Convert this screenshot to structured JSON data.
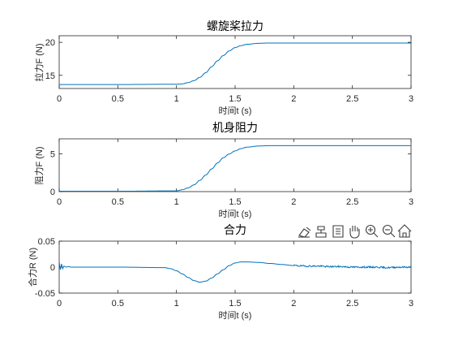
{
  "colors": {
    "line": "#0072BD",
    "axis": "#262626",
    "background": "#ffffff",
    "toolbar": "#3c3c3c"
  },
  "toolbar": {
    "icons": [
      "brush-icon",
      "data-tip-icon",
      "legend-icon",
      "pan-icon",
      "zoom-in-icon",
      "zoom-out-icon",
      "home-icon"
    ]
  },
  "chart_data": [
    {
      "type": "line",
      "title": "螺旋桨拉力",
      "xlabel": "时间t (s)",
      "ylabel": "拉力F (N)",
      "xlim": [
        0,
        3
      ],
      "ylim": [
        13,
        21
      ],
      "xticks": [
        0,
        0.5,
        1,
        1.5,
        2,
        2.5,
        3
      ],
      "xtick_labels": [
        "0",
        "0.5",
        "1",
        "1.5",
        "2",
        "2.5",
        "3"
      ],
      "yticks": [
        15,
        20
      ],
      "ytick_labels": [
        "15",
        "20"
      ],
      "grid": false,
      "series": [
        {
          "x": [
            0,
            0.5,
            1.0,
            1.05,
            1.1,
            1.15,
            1.2,
            1.25,
            1.3,
            1.35,
            1.4,
            1.45,
            1.5,
            1.55,
            1.6,
            1.7,
            1.8,
            1.9,
            2.0,
            2.5,
            3.0
          ],
          "values": [
            13.6,
            13.6,
            13.65,
            13.7,
            13.9,
            14.2,
            14.7,
            15.4,
            16.3,
            17.2,
            18.0,
            18.7,
            19.2,
            19.5,
            19.7,
            19.85,
            19.9,
            19.9,
            19.9,
            19.9,
            19.9
          ]
        }
      ]
    },
    {
      "type": "line",
      "title": "机身阻力",
      "xlabel": "时间t (s)",
      "ylabel": "阻力F (N)",
      "xlim": [
        0,
        3
      ],
      "ylim": [
        0,
        7
      ],
      "xticks": [
        0,
        0.5,
        1,
        1.5,
        2,
        2.5,
        3
      ],
      "xtick_labels": [
        "0",
        "0.5",
        "1",
        "1.5",
        "2",
        "2.5",
        "3"
      ],
      "yticks": [
        0,
        5
      ],
      "ytick_labels": [
        "0",
        "5"
      ],
      "grid": false,
      "series": [
        {
          "x": [
            0,
            0.5,
            1.0,
            1.05,
            1.1,
            1.15,
            1.2,
            1.25,
            1.3,
            1.35,
            1.4,
            1.45,
            1.5,
            1.55,
            1.6,
            1.7,
            1.8,
            1.9,
            2.0,
            2.5,
            3.0
          ],
          "values": [
            0.05,
            0.05,
            0.1,
            0.25,
            0.5,
            0.9,
            1.5,
            2.2,
            3.0,
            3.8,
            4.5,
            5.0,
            5.4,
            5.7,
            5.9,
            6.05,
            6.1,
            6.1,
            6.1,
            6.1,
            6.1
          ]
        }
      ]
    },
    {
      "type": "line",
      "title": "合力",
      "xlabel": "时间t (s)",
      "ylabel": "合力R (N)",
      "xlim": [
        0,
        3
      ],
      "ylim": [
        -0.05,
        0.05
      ],
      "xticks": [
        0,
        0.5,
        1,
        1.5,
        2,
        2.5,
        3
      ],
      "xtick_labels": [
        "0",
        "0.5",
        "1",
        "1.5",
        "2",
        "2.5",
        "3"
      ],
      "yticks": [
        -0.05,
        0,
        0.05
      ],
      "ytick_labels": [
        "-0.05",
        "0",
        "0.05"
      ],
      "grid": false,
      "series": [
        {
          "x": [
            0,
            0.01,
            0.02,
            0.03,
            0.04,
            0.06,
            0.08,
            0.1,
            0.5,
            0.9,
            0.95,
            1.0,
            1.05,
            1.1,
            1.15,
            1.2,
            1.25,
            1.3,
            1.35,
            1.4,
            1.45,
            1.5,
            1.55,
            1.6,
            1.7,
            1.8,
            1.9,
            2.0,
            2.1,
            2.2,
            2.3,
            2.4,
            2.5,
            2.6,
            2.7,
            2.8,
            2.9,
            3.0
          ],
          "values": [
            0.01,
            -0.005,
            0.006,
            -0.003,
            0.002,
            0.0,
            0.001,
            0.0,
            0.0,
            -0.001,
            -0.003,
            -0.007,
            -0.013,
            -0.02,
            -0.026,
            -0.029,
            -0.027,
            -0.021,
            -0.013,
            -0.005,
            0.003,
            0.008,
            0.01,
            0.01,
            0.009,
            0.007,
            0.005,
            0.003,
            0.002,
            0.002,
            0.001,
            0.001,
            0.0,
            0.0,
            0.0,
            -0.001,
            0.0,
            0.0
          ],
          "noise_after_x": 2.0,
          "noise_amplitude": 0.0015
        }
      ]
    }
  ]
}
